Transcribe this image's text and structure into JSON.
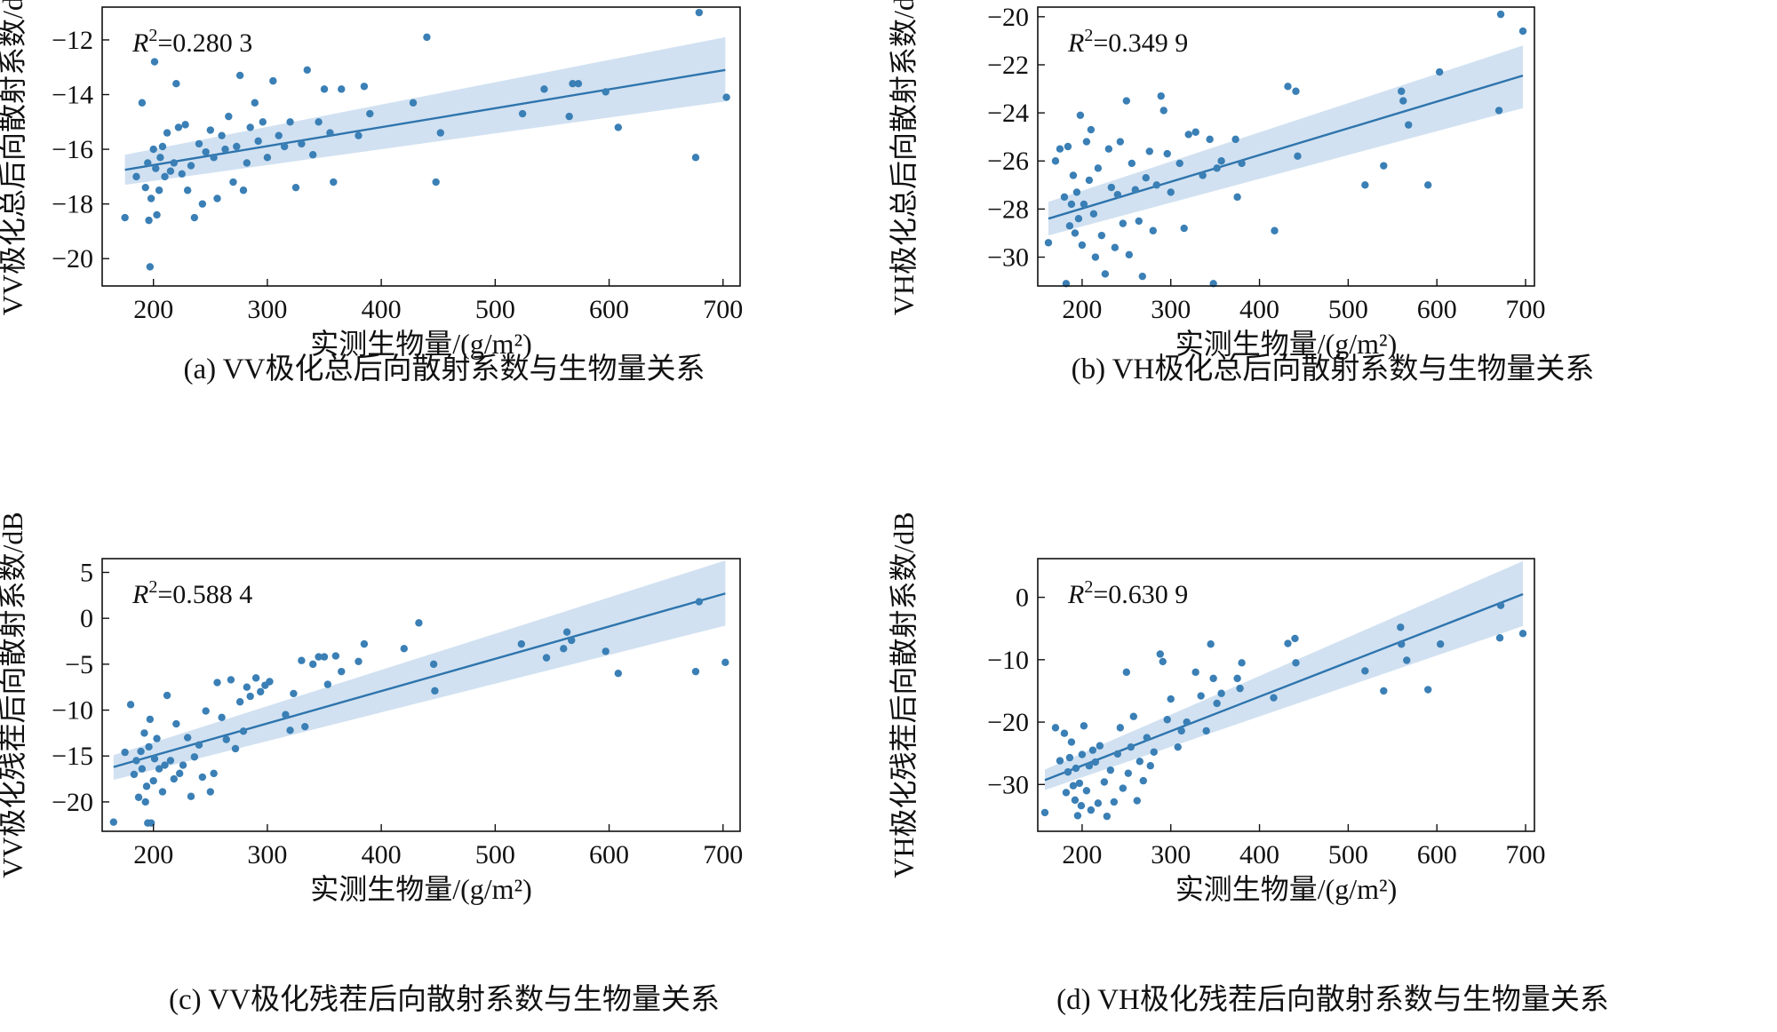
{
  "chart_data": [
    {
      "type": "scatter",
      "caption": "(a) VV极化总后向散射系数与生物量关系",
      "xlabel": "实测生物量/(g/m²)",
      "ylabel": "VV极化总后向散射系数/dB",
      "r2_label": "R",
      "r2_sup": "2",
      "r2_value": "=0.280 3",
      "xlim": [
        155,
        715
      ],
      "ylim": [
        -21,
        -10.8
      ],
      "xticks": [
        200,
        300,
        400,
        500,
        600,
        700
      ],
      "yticks": [
        -20,
        -18,
        -16,
        -14,
        -12
      ],
      "fit": {
        "x": [
          175,
          702
        ],
        "y": [
          -16.75,
          -13.1
        ],
        "band_lo": [
          -17.3,
          -14.25
        ],
        "band_hi": [
          -16.2,
          -11.9
        ]
      },
      "points": [
        [
          175,
          -18.5
        ],
        [
          185,
          -17.0
        ],
        [
          190,
          -14.3
        ],
        [
          193,
          -17.4
        ],
        [
          195,
          -16.5
        ],
        [
          196,
          -18.6
        ],
        [
          197,
          -20.3
        ],
        [
          198,
          -17.8
        ],
        [
          200,
          -16.0
        ],
        [
          201,
          -12.8
        ],
        [
          202,
          -16.7
        ],
        [
          203,
          -18.4
        ],
        [
          205,
          -17.5
        ],
        [
          206,
          -16.3
        ],
        [
          208,
          -15.9
        ],
        [
          210,
          -17.0
        ],
        [
          212,
          -15.4
        ],
        [
          215,
          -16.8
        ],
        [
          218,
          -16.5
        ],
        [
          220,
          -13.6
        ],
        [
          222,
          -15.2
        ],
        [
          225,
          -16.9
        ],
        [
          228,
          -15.1
        ],
        [
          230,
          -17.5
        ],
        [
          233,
          -16.6
        ],
        [
          236,
          -18.5
        ],
        [
          240,
          -15.8
        ],
        [
          243,
          -18.0
        ],
        [
          246,
          -16.1
        ],
        [
          250,
          -15.3
        ],
        [
          253,
          -16.3
        ],
        [
          256,
          -17.8
        ],
        [
          260,
          -15.5
        ],
        [
          263,
          -16.0
        ],
        [
          266,
          -14.8
        ],
        [
          270,
          -17.2
        ],
        [
          273,
          -15.9
        ],
        [
          276,
          -13.3
        ],
        [
          279,
          -17.5
        ],
        [
          282,
          -16.5
        ],
        [
          285,
          -15.2
        ],
        [
          289,
          -14.3
        ],
        [
          292,
          -15.7
        ],
        [
          296,
          -15.0
        ],
        [
          300,
          -16.3
        ],
        [
          305,
          -13.5
        ],
        [
          310,
          -15.5
        ],
        [
          315,
          -15.9
        ],
        [
          320,
          -15.0
        ],
        [
          325,
          -17.4
        ],
        [
          330,
          -15.8
        ],
        [
          335,
          -13.1
        ],
        [
          340,
          -16.2
        ],
        [
          345,
          -15.0
        ],
        [
          350,
          -13.8
        ],
        [
          355,
          -15.4
        ],
        [
          358,
          -17.2
        ],
        [
          365,
          -13.8
        ],
        [
          380,
          -15.5
        ],
        [
          385,
          -13.7
        ],
        [
          390,
          -14.7
        ],
        [
          428,
          -14.3
        ],
        [
          440,
          -11.9
        ],
        [
          448,
          -17.2
        ],
        [
          452,
          -15.4
        ],
        [
          524,
          -14.7
        ],
        [
          543,
          -13.8
        ],
        [
          565,
          -14.8
        ],
        [
          568,
          -13.6
        ],
        [
          573,
          -13.6
        ],
        [
          597,
          -13.9
        ],
        [
          608,
          -15.2
        ],
        [
          676,
          -16.3
        ],
        [
          679,
          -11.0
        ],
        [
          703,
          -14.1
        ]
      ]
    },
    {
      "type": "scatter",
      "caption": "(b) VH极化总后向散射系数与生物量关系",
      "xlabel": "实测生物量/(g/m²)",
      "ylabel": "VH极化总后向散射系数/dB",
      "r2_label": "R",
      "r2_sup": "2",
      "r2_value": "=0.349 9",
      "xlim": [
        150,
        710
      ],
      "ylim": [
        -31.2,
        -19.6
      ],
      "xticks": [
        200,
        300,
        400,
        500,
        600,
        700
      ],
      "yticks": [
        -30,
        -28,
        -26,
        -24,
        -22,
        -20
      ],
      "fit": {
        "x": [
          162,
          697
        ],
        "y": [
          -28.4,
          -22.45
        ],
        "band_lo": [
          -29.1,
          -23.8
        ],
        "band_hi": [
          -27.7,
          -21.2
        ]
      },
      "points": [
        [
          162,
          -29.4
        ],
        [
          170,
          -26.0
        ],
        [
          175,
          -25.5
        ],
        [
          180,
          -27.5
        ],
        [
          182,
          -31.1
        ],
        [
          184,
          -25.4
        ],
        [
          186,
          -28.7
        ],
        [
          188,
          -27.8
        ],
        [
          190,
          -26.6
        ],
        [
          192,
          -29.0
        ],
        [
          194,
          -27.3
        ],
        [
          196,
          -28.4
        ],
        [
          198,
          -24.1
        ],
        [
          200,
          -29.5
        ],
        [
          202,
          -27.8
        ],
        [
          205,
          -25.2
        ],
        [
          208,
          -26.8
        ],
        [
          210,
          -24.7
        ],
        [
          213,
          -28.2
        ],
        [
          215,
          -30.0
        ],
        [
          218,
          -26.3
        ],
        [
          222,
          -29.1
        ],
        [
          226,
          -30.7
        ],
        [
          230,
          -25.5
        ],
        [
          233,
          -27.1
        ],
        [
          237,
          -29.6
        ],
        [
          240,
          -27.4
        ],
        [
          243,
          -25.2
        ],
        [
          246,
          -28.6
        ],
        [
          250,
          -23.5
        ],
        [
          253,
          -29.9
        ],
        [
          256,
          -26.1
        ],
        [
          260,
          -27.2
        ],
        [
          264,
          -28.5
        ],
        [
          268,
          -30.8
        ],
        [
          272,
          -26.7
        ],
        [
          276,
          -25.6
        ],
        [
          280,
          -28.9
        ],
        [
          284,
          -27.0
        ],
        [
          289,
          -23.3
        ],
        [
          292,
          -23.9
        ],
        [
          296,
          -25.7
        ],
        [
          300,
          -27.3
        ],
        [
          310,
          -26.1
        ],
        [
          315,
          -28.8
        ],
        [
          320,
          -24.9
        ],
        [
          328,
          -24.8
        ],
        [
          336,
          -26.6
        ],
        [
          344,
          -25.1
        ],
        [
          348,
          -31.1
        ],
        [
          352,
          -26.3
        ],
        [
          357,
          -26.0
        ],
        [
          373,
          -25.1
        ],
        [
          375,
          -27.5
        ],
        [
          380,
          -26.1
        ],
        [
          417,
          -28.9
        ],
        [
          432,
          -22.9
        ],
        [
          441,
          -23.1
        ],
        [
          443,
          -25.8
        ],
        [
          519,
          -27.0
        ],
        [
          540,
          -26.2
        ],
        [
          560,
          -23.1
        ],
        [
          562,
          -23.5
        ],
        [
          568,
          -24.5
        ],
        [
          590,
          -27.0
        ],
        [
          603,
          -22.3
        ],
        [
          670,
          -23.9
        ],
        [
          672,
          -19.9
        ],
        [
          697,
          -20.6
        ]
      ]
    },
    {
      "type": "scatter",
      "caption": "(c) VV极化残茬后向散射系数与生物量关系",
      "xlabel": "实测生物量/(g/m²)",
      "ylabel": "VV极化残茬后向散射系数/dB",
      "r2_label": "R",
      "r2_sup": "2",
      "r2_value": "=0.588 4",
      "xlim": [
        155,
        715
      ],
      "ylim": [
        -23.2,
        6.5
      ],
      "xticks": [
        200,
        300,
        400,
        500,
        600,
        700
      ],
      "yticks": [
        -20,
        -15,
        -10,
        -5,
        0,
        5
      ],
      "fit": {
        "x": [
          165,
          702
        ],
        "y": [
          -16.2,
          2.7
        ],
        "band_lo": [
          -17.6,
          -0.8
        ],
        "band_hi": [
          -14.9,
          6.3
        ]
      },
      "points": [
        [
          165,
          -22.2
        ],
        [
          175,
          -14.6
        ],
        [
          180,
          -9.4
        ],
        [
          183,
          -17.0
        ],
        [
          185,
          -15.5
        ],
        [
          187,
          -19.5
        ],
        [
          189,
          -14.5
        ],
        [
          190,
          -16.4
        ],
        [
          192,
          -12.5
        ],
        [
          193,
          -20.0
        ],
        [
          194,
          -18.3
        ],
        [
          195,
          -22.3
        ],
        [
          196,
          -14.0
        ],
        [
          197,
          -11.0
        ],
        [
          198,
          -22.3
        ],
        [
          200,
          -17.7
        ],
        [
          201,
          -15.3
        ],
        [
          203,
          -13.1
        ],
        [
          205,
          -16.4
        ],
        [
          208,
          -18.9
        ],
        [
          210,
          -16.0
        ],
        [
          212,
          -8.4
        ],
        [
          215,
          -15.5
        ],
        [
          218,
          -17.5
        ],
        [
          220,
          -11.5
        ],
        [
          223,
          -16.9
        ],
        [
          226,
          -16.0
        ],
        [
          230,
          -13.0
        ],
        [
          233,
          -19.4
        ],
        [
          236,
          -15.1
        ],
        [
          240,
          -13.8
        ],
        [
          243,
          -17.3
        ],
        [
          246,
          -10.1
        ],
        [
          250,
          -18.9
        ],
        [
          253,
          -16.9
        ],
        [
          256,
          -7.0
        ],
        [
          260,
          -10.8
        ],
        [
          264,
          -13.2
        ],
        [
          268,
          -6.7
        ],
        [
          272,
          -14.2
        ],
        [
          276,
          -9.1
        ],
        [
          279,
          -12.3
        ],
        [
          282,
          -7.5
        ],
        [
          285,
          -8.5
        ],
        [
          290,
          -6.5
        ],
        [
          294,
          -8.0
        ],
        [
          298,
          -7.3
        ],
        [
          302,
          -6.9
        ],
        [
          316,
          -10.5
        ],
        [
          320,
          -12.2
        ],
        [
          323,
          -8.2
        ],
        [
          330,
          -4.6
        ],
        [
          333,
          -11.8
        ],
        [
          340,
          -5.0
        ],
        [
          345,
          -4.2
        ],
        [
          350,
          -4.2
        ],
        [
          353,
          -7.2
        ],
        [
          360,
          -4.1
        ],
        [
          365,
          -5.8
        ],
        [
          380,
          -4.7
        ],
        [
          385,
          -2.8
        ],
        [
          420,
          -3.3
        ],
        [
          433,
          -0.5
        ],
        [
          446,
          -5.0
        ],
        [
          447,
          -7.9
        ],
        [
          523,
          -2.8
        ],
        [
          545,
          -4.3
        ],
        [
          560,
          -3.3
        ],
        [
          563,
          -1.5
        ],
        [
          567,
          -2.4
        ],
        [
          597,
          -3.6
        ],
        [
          608,
          -6.0
        ],
        [
          676,
          -5.8
        ],
        [
          679,
          1.8
        ],
        [
          702,
          -4.8
        ]
      ]
    },
    {
      "type": "scatter",
      "caption": "(d) VH极化残茬后向散射系数与生物量关系",
      "xlabel": "实测生物量/(g/m²)",
      "ylabel": "VH极化残茬后向散射系数/dB",
      "r2_label": "R",
      "r2_sup": "2",
      "r2_value": "=0.630 9",
      "xlim": [
        150,
        710
      ],
      "ylim": [
        -37.5,
        6.2
      ],
      "xticks": [
        200,
        300,
        400,
        500,
        600,
        700
      ],
      "yticks": [
        -30,
        -20,
        -10,
        0
      ],
      "fit": {
        "x": [
          158,
          697
        ],
        "y": [
          -29.3,
          0.5
        ],
        "band_lo": [
          -30.9,
          -4.6
        ],
        "band_hi": [
          -27.6,
          5.8
        ]
      },
      "points": [
        [
          158,
          -34.5
        ],
        [
          170,
          -20.9
        ],
        [
          175,
          -26.2
        ],
        [
          180,
          -21.8
        ],
        [
          182,
          -31.3
        ],
        [
          184,
          -28.0
        ],
        [
          186,
          -25.7
        ],
        [
          188,
          -23.2
        ],
        [
          190,
          -30.2
        ],
        [
          192,
          -32.5
        ],
        [
          193,
          -27.4
        ],
        [
          195,
          -35.0
        ],
        [
          197,
          -29.8
        ],
        [
          199,
          -33.4
        ],
        [
          200,
          -25.2
        ],
        [
          202,
          -20.6
        ],
        [
          205,
          -31.0
        ],
        [
          208,
          -27.0
        ],
        [
          210,
          -34.1
        ],
        [
          212,
          -24.5
        ],
        [
          215,
          -26.4
        ],
        [
          218,
          -33.0
        ],
        [
          220,
          -23.8
        ],
        [
          225,
          -29.6
        ],
        [
          228,
          -35.1
        ],
        [
          232,
          -27.7
        ],
        [
          236,
          -32.8
        ],
        [
          240,
          -25.1
        ],
        [
          243,
          -20.9
        ],
        [
          246,
          -30.6
        ],
        [
          250,
          -12.0
        ],
        [
          252,
          -28.2
        ],
        [
          255,
          -24.0
        ],
        [
          258,
          -19.1
        ],
        [
          262,
          -32.6
        ],
        [
          265,
          -26.3
        ],
        [
          269,
          -29.4
        ],
        [
          273,
          -22.5
        ],
        [
          277,
          -27.0
        ],
        [
          281,
          -24.8
        ],
        [
          288,
          -9.1
        ],
        [
          291,
          -10.3
        ],
        [
          296,
          -19.6
        ],
        [
          300,
          -16.3
        ],
        [
          308,
          -24.0
        ],
        [
          312,
          -21.4
        ],
        [
          318,
          -20.0
        ],
        [
          328,
          -12.0
        ],
        [
          334,
          -15.8
        ],
        [
          340,
          -21.4
        ],
        [
          345,
          -7.5
        ],
        [
          348,
          -13.0
        ],
        [
          352,
          -17.0
        ],
        [
          357,
          -15.4
        ],
        [
          375,
          -13.0
        ],
        [
          378,
          -14.6
        ],
        [
          380,
          -10.5
        ],
        [
          416,
          -16.1
        ],
        [
          432,
          -7.4
        ],
        [
          440,
          -6.6
        ],
        [
          441,
          -10.5
        ],
        [
          519,
          -11.8
        ],
        [
          540,
          -15.0
        ],
        [
          559,
          -4.8
        ],
        [
          560,
          -7.5
        ],
        [
          566,
          -10.1
        ],
        [
          590,
          -14.8
        ],
        [
          604,
          -7.5
        ],
        [
          671,
          -6.5
        ],
        [
          672,
          -1.3
        ],
        [
          697,
          -5.8
        ]
      ]
    }
  ],
  "colors": {
    "point": "#3a7fb5",
    "line": "#2e74ad",
    "band": "#c9dcee",
    "axis": "#111111"
  }
}
